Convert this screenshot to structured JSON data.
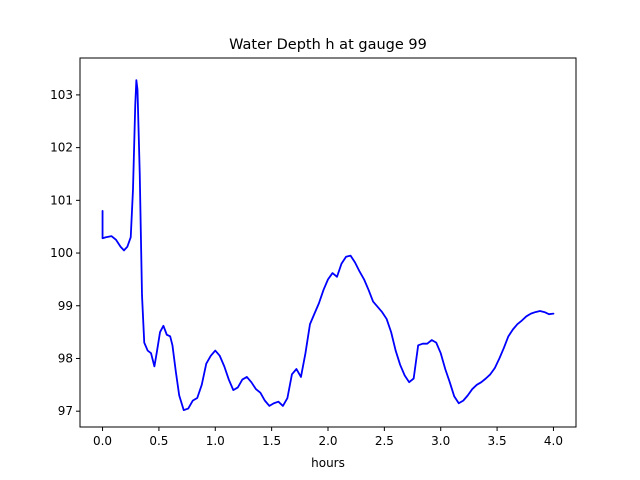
{
  "chart_data": {
    "type": "line",
    "title": "Water Depth h at gauge 99",
    "xlabel": "hours",
    "ylabel": "",
    "xlim": [
      -0.2,
      4.2
    ],
    "ylim": [
      96.7,
      103.7
    ],
    "grid": false,
    "xticks": [
      0.0,
      0.5,
      1.0,
      1.5,
      2.0,
      2.5,
      3.0,
      3.5,
      4.0
    ],
    "xtick_labels": [
      "0.0",
      "0.5",
      "1.0",
      "1.5",
      "2.0",
      "2.5",
      "3.0",
      "3.5",
      "4.0"
    ],
    "yticks": [
      97,
      98,
      99,
      100,
      101,
      102,
      103
    ],
    "ytick_labels": [
      "97",
      "98",
      "99",
      "100",
      "101",
      "102",
      "103"
    ],
    "series": [
      {
        "color": "#0000ff",
        "x": [
          0.0,
          0.0,
          0.03,
          0.08,
          0.12,
          0.16,
          0.19,
          0.22,
          0.25,
          0.27,
          0.29,
          0.3,
          0.31,
          0.33,
          0.35,
          0.37,
          0.4,
          0.43,
          0.46,
          0.48,
          0.51,
          0.54,
          0.57,
          0.6,
          0.62,
          0.65,
          0.68,
          0.72,
          0.76,
          0.8,
          0.84,
          0.88,
          0.92,
          0.96,
          1.0,
          1.04,
          1.08,
          1.12,
          1.16,
          1.2,
          1.24,
          1.28,
          1.32,
          1.36,
          1.4,
          1.44,
          1.48,
          1.52,
          1.56,
          1.6,
          1.64,
          1.68,
          1.72,
          1.76,
          1.8,
          1.84,
          1.88,
          1.92,
          1.96,
          2.0,
          2.04,
          2.08,
          2.12,
          2.16,
          2.2,
          2.24,
          2.28,
          2.32,
          2.36,
          2.4,
          2.44,
          2.48,
          2.52,
          2.56,
          2.6,
          2.64,
          2.68,
          2.72,
          2.76,
          2.8,
          2.84,
          2.88,
          2.92,
          2.96,
          3.0,
          3.04,
          3.08,
          3.12,
          3.16,
          3.2,
          3.24,
          3.28,
          3.32,
          3.36,
          3.4,
          3.44,
          3.48,
          3.52,
          3.56,
          3.6,
          3.64,
          3.68,
          3.72,
          3.76,
          3.8,
          3.84,
          3.88,
          3.92,
          3.96,
          4.0
        ],
        "values": [
          100.8,
          100.28,
          100.3,
          100.32,
          100.25,
          100.12,
          100.05,
          100.12,
          100.3,
          101.2,
          102.8,
          103.28,
          103.1,
          101.5,
          99.2,
          98.3,
          98.15,
          98.1,
          97.85,
          98.1,
          98.5,
          98.62,
          98.45,
          98.42,
          98.25,
          97.75,
          97.3,
          97.02,
          97.05,
          97.2,
          97.25,
          97.5,
          97.9,
          98.05,
          98.15,
          98.05,
          97.85,
          97.6,
          97.4,
          97.45,
          97.6,
          97.65,
          97.55,
          97.42,
          97.35,
          97.2,
          97.1,
          97.15,
          97.18,
          97.1,
          97.25,
          97.7,
          97.8,
          97.65,
          98.1,
          98.65,
          98.85,
          99.05,
          99.3,
          99.5,
          99.62,
          99.55,
          99.8,
          99.93,
          99.95,
          99.82,
          99.65,
          99.5,
          99.3,
          99.08,
          98.98,
          98.88,
          98.75,
          98.5,
          98.15,
          97.88,
          97.68,
          97.55,
          97.62,
          98.25,
          98.28,
          98.28,
          98.35,
          98.3,
          98.1,
          97.8,
          97.55,
          97.28,
          97.15,
          97.2,
          97.3,
          97.42,
          97.5,
          97.55,
          97.62,
          97.7,
          97.82,
          98.0,
          98.2,
          98.42,
          98.55,
          98.65,
          98.72,
          98.8,
          98.85,
          98.88,
          98.9,
          98.88,
          98.84,
          98.85
        ]
      }
    ]
  }
}
